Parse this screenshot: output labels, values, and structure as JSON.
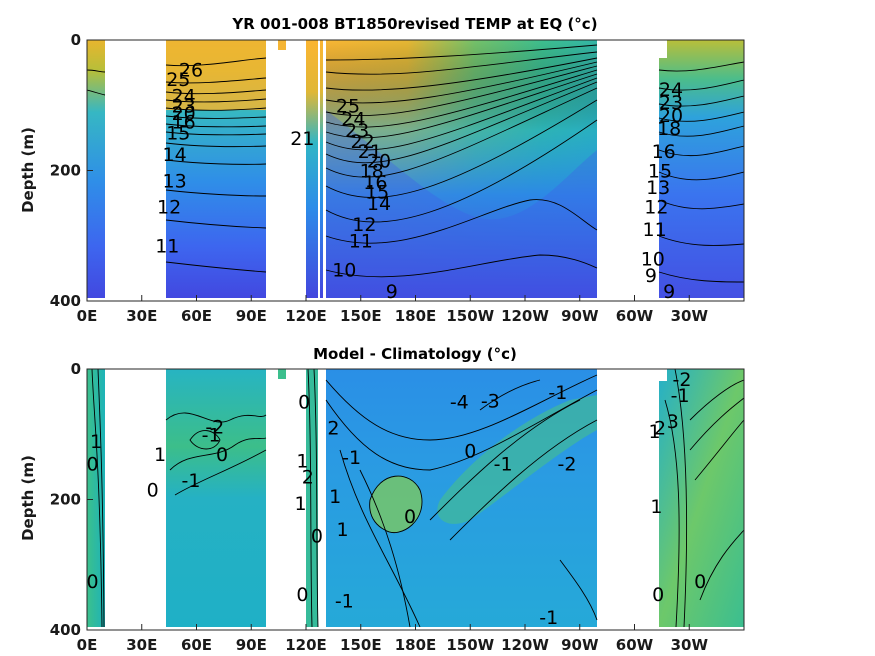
{
  "chart_data": [
    {
      "type": "heatmap",
      "subtype": "filled-contour",
      "title": "YR 001-008 BT1850revised TEMP at EQ (°c)",
      "ylabel": "Depth (m)",
      "xlabel": "",
      "x_tick_labels": [
        "0E",
        "30E",
        "60E",
        "90E",
        "120E",
        "150E",
        "180E",
        "150W",
        "120W",
        "90W",
        "60W",
        "30W"
      ],
      "x_ticks_deg_east": [
        0,
        30,
        60,
        90,
        120,
        150,
        180,
        210,
        240,
        270,
        300,
        330
      ],
      "xlim_deg_east": [
        0,
        360
      ],
      "y_tick_labels": [
        "0",
        "200",
        "400"
      ],
      "y_ticks": [
        0,
        200,
        400
      ],
      "ylim": [
        400,
        0
      ],
      "y_reversed": true,
      "colormap": "parula",
      "land_color": "#ffffff",
      "contour_labels": [
        {
          "lon": 50,
          "depth": 60,
          "value": 25
        },
        {
          "lon": 57,
          "depth": 45,
          "value": 26
        },
        {
          "lon": 53,
          "depth": 85,
          "value": 24
        },
        {
          "lon": 53,
          "depth": 100,
          "value": 23
        },
        {
          "lon": 53,
          "depth": 112,
          "value": 20
        },
        {
          "lon": 53,
          "depth": 125,
          "value": 16
        },
        {
          "lon": 50,
          "depth": 142,
          "value": 15
        },
        {
          "lon": 48,
          "depth": 175,
          "value": 14
        },
        {
          "lon": 48,
          "depth": 215,
          "value": 13
        },
        {
          "lon": 45,
          "depth": 255,
          "value": 12
        },
        {
          "lon": 44,
          "depth": 315,
          "value": 11
        },
        {
          "lon": 118,
          "depth": 150,
          "value": 21
        },
        {
          "lon": 143,
          "depth": 100,
          "value": 25
        },
        {
          "lon": 146,
          "depth": 120,
          "value": 24
        },
        {
          "lon": 148,
          "depth": 138,
          "value": 23
        },
        {
          "lon": 151,
          "depth": 155,
          "value": 22
        },
        {
          "lon": 155,
          "depth": 170,
          "value": 21
        },
        {
          "lon": 160,
          "depth": 185,
          "value": 20
        },
        {
          "lon": 156,
          "depth": 200,
          "value": 18
        },
        {
          "lon": 158,
          "depth": 218,
          "value": 16
        },
        {
          "lon": 159,
          "depth": 232,
          "value": 15
        },
        {
          "lon": 160,
          "depth": 250,
          "value": 14
        },
        {
          "lon": 152,
          "depth": 282,
          "value": 12
        },
        {
          "lon": 150,
          "depth": 307,
          "value": 11
        },
        {
          "lon": 141,
          "depth": 352,
          "value": 10
        },
        {
          "lon": 167,
          "depth": 385,
          "value": 9
        },
        {
          "lon": 320,
          "depth": 75,
          "value": 24
        },
        {
          "lon": 320,
          "depth": 95,
          "value": 23
        },
        {
          "lon": 320,
          "depth": 115,
          "value": 20
        },
        {
          "lon": 319,
          "depth": 135,
          "value": 18
        },
        {
          "lon": 316,
          "depth": 170,
          "value": 16
        },
        {
          "lon": 314,
          "depth": 200,
          "value": 15
        },
        {
          "lon": 313,
          "depth": 225,
          "value": 13
        },
        {
          "lon": 312,
          "depth": 255,
          "value": 12
        },
        {
          "lon": 311,
          "depth": 290,
          "value": 11
        },
        {
          "lon": 310,
          "depth": 335,
          "value": 10
        },
        {
          "lon": 309,
          "depth": 360,
          "value": 9
        },
        {
          "lon": 319,
          "depth": 385,
          "value": 9
        }
      ]
    },
    {
      "type": "heatmap",
      "subtype": "filled-contour",
      "title": "Model - Climatology (°c)",
      "ylabel": "Depth (m)",
      "xlabel": "",
      "x_tick_labels": [
        "0E",
        "30E",
        "60E",
        "90E",
        "120E",
        "150E",
        "180E",
        "150W",
        "120W",
        "90W",
        "60W",
        "30W"
      ],
      "x_ticks_deg_east": [
        0,
        30,
        60,
        90,
        120,
        150,
        180,
        210,
        240,
        270,
        300,
        330
      ],
      "xlim_deg_east": [
        0,
        360
      ],
      "y_tick_labels": [
        "0",
        "200",
        "400"
      ],
      "y_ticks": [
        0,
        200,
        400
      ],
      "ylim": [
        400,
        0
      ],
      "y_reversed": true,
      "colormap": "parula",
      "land_color": "#ffffff",
      "contour_labels": [
        {
          "lon": 5,
          "depth": 110,
          "value": 1
        },
        {
          "lon": 3,
          "depth": 145,
          "value": 0
        },
        {
          "lon": 3,
          "depth": 325,
          "value": 0
        },
        {
          "lon": 36,
          "depth": 185,
          "value": 0
        },
        {
          "lon": 40,
          "depth": 130,
          "value": 1
        },
        {
          "lon": 70,
          "depth": 88,
          "value": -2
        },
        {
          "lon": 68,
          "depth": 100,
          "value": -1
        },
        {
          "lon": 74,
          "depth": 130,
          "value": 0
        },
        {
          "lon": 57,
          "depth": 170,
          "value": -1
        },
        {
          "lon": 119,
          "depth": 50,
          "value": 0
        },
        {
          "lon": 118,
          "depth": 140,
          "value": 1
        },
        {
          "lon": 121,
          "depth": 165,
          "value": 2
        },
        {
          "lon": 117,
          "depth": 205,
          "value": 1
        },
        {
          "lon": 118,
          "depth": 345,
          "value": 0
        },
        {
          "lon": 135,
          "depth": 90,
          "value": 2
        },
        {
          "lon": 145,
          "depth": 135,
          "value": -1
        },
        {
          "lon": 136,
          "depth": 195,
          "value": 1
        },
        {
          "lon": 140,
          "depth": 245,
          "value": 1
        },
        {
          "lon": 126,
          "depth": 255,
          "value": 0
        },
        {
          "lon": 141,
          "depth": 355,
          "value": -1
        },
        {
          "lon": 177,
          "depth": 225,
          "value": 0
        },
        {
          "lon": 204,
          "depth": 50,
          "value": -4
        },
        {
          "lon": 221,
          "depth": 48,
          "value": -3
        },
        {
          "lon": 210,
          "depth": 125,
          "value": 0
        },
        {
          "lon": 228,
          "depth": 145,
          "value": -1
        },
        {
          "lon": 263,
          "depth": 145,
          "value": -2
        },
        {
          "lon": 258,
          "depth": 35,
          "value": -1
        },
        {
          "lon": 253,
          "depth": 380,
          "value": -1
        },
        {
          "lon": 312,
          "depth": 210,
          "value": 1
        },
        {
          "lon": 326,
          "depth": 15,
          "value": -2
        },
        {
          "lon": 325,
          "depth": 40,
          "value": -1
        },
        {
          "lon": 311,
          "depth": 95,
          "value": 1
        },
        {
          "lon": 314,
          "depth": 90,
          "value": 2
        },
        {
          "lon": 321,
          "depth": 80,
          "value": 3
        },
        {
          "lon": 313,
          "depth": 345,
          "value": 0
        },
        {
          "lon": 336,
          "depth": 325,
          "value": 0
        }
      ]
    }
  ]
}
